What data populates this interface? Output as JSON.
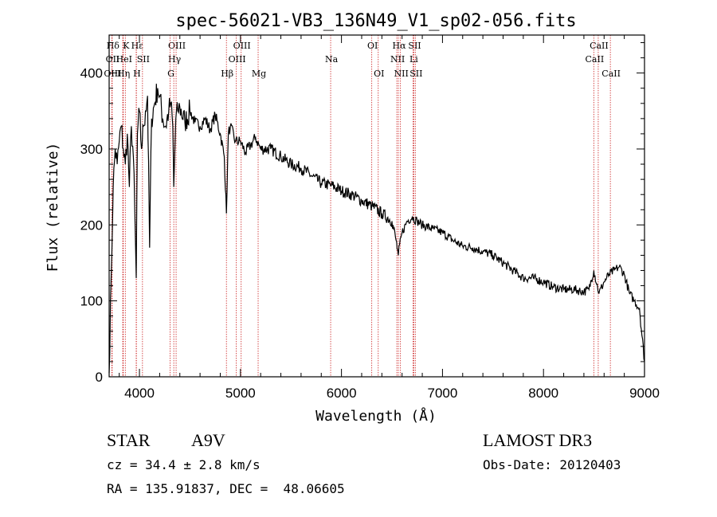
{
  "chart_data": {
    "type": "line",
    "title": "spec-56021-VB3_136N49_V1_sp02-056.fits",
    "xlabel": "Wavelength (Å)",
    "ylabel": "Flux (relative)",
    "xlim": [
      3700,
      9000
    ],
    "ylim": [
      0,
      450
    ],
    "x_ticks": [
      4000,
      5000,
      6000,
      7000,
      8000,
      9000
    ],
    "y_ticks": [
      0,
      100,
      200,
      300,
      400
    ],
    "grid": false,
    "series": [
      {
        "name": "spectrum",
        "x": [
          3700,
          3720,
          3740,
          3760,
          3780,
          3800,
          3820,
          3840,
          3860,
          3880,
          3900,
          3920,
          3940,
          3960,
          3968,
          3980,
          4000,
          4020,
          4040,
          4060,
          4080,
          4101,
          4120,
          4150,
          4180,
          4200,
          4230,
          4260,
          4290,
          4310,
          4330,
          4340,
          4360,
          4380,
          4400,
          4450,
          4500,
          4550,
          4600,
          4650,
          4700,
          4750,
          4800,
          4840,
          4861,
          4880,
          4900,
          4950,
          5000,
          5050,
          5100,
          5150,
          5200,
          5300,
          5400,
          5500,
          5600,
          5700,
          5800,
          5900,
          6000,
          6100,
          6200,
          6300,
          6400,
          6500,
          6540,
          6563,
          6600,
          6650,
          6700,
          6750,
          6800,
          6900,
          7000,
          7100,
          7200,
          7300,
          7400,
          7500,
          7600,
          7700,
          7800,
          7900,
          8000,
          8100,
          8200,
          8300,
          8400,
          8450,
          8498,
          8550,
          8600,
          8650,
          8700,
          8750,
          8800,
          8850,
          8900,
          8950,
          9000
        ],
        "y": [
          5,
          130,
          250,
          300,
          280,
          310,
          330,
          300,
          280,
          320,
          250,
          330,
          290,
          180,
          130,
          320,
          350,
          300,
          330,
          350,
          370,
          170,
          340,
          360,
          380,
          370,
          340,
          330,
          350,
          360,
          330,
          250,
          340,
          350,
          355,
          335,
          350,
          335,
          330,
          340,
          325,
          345,
          320,
          290,
          215,
          320,
          330,
          310,
          310,
          295,
          305,
          315,
          300,
          300,
          290,
          280,
          275,
          265,
          255,
          252,
          245,
          240,
          232,
          225,
          215,
          205,
          180,
          160,
          190,
          205,
          210,
          205,
          200,
          195,
          190,
          180,
          172,
          170,
          165,
          160,
          150,
          140,
          130,
          130,
          125,
          118,
          115,
          115,
          112,
          115,
          140,
          110,
          125,
          135,
          140,
          145,
          135,
          110,
          100,
          90,
          20
        ]
      }
    ],
    "line_markers": [
      {
        "label": "Hδ",
        "x": 3730,
        "row": 0
      },
      {
        "label": "OII",
        "x": 3727,
        "row": 1
      },
      {
        "label": "OIII",
        "x": 3727,
        "row": 2
      },
      {
        "label": "K",
        "x": 3860,
        "row": 0
      },
      {
        "label": "HeI",
        "x": 3840,
        "row": 1
      },
      {
        "label": "Hη",
        "x": 3835,
        "row": 2
      },
      {
        "label": "Hε",
        "x": 3970,
        "row": 0
      },
      {
        "label": "SII",
        "x": 4030,
        "row": 1
      },
      {
        "label": "H",
        "x": 3968,
        "row": 2
      },
      {
        "label": "OIII",
        "x": 4363,
        "row": 0
      },
      {
        "label": "Hγ",
        "x": 4340,
        "row": 1
      },
      {
        "label": "G",
        "x": 4304,
        "row": 2
      },
      {
        "label": "OIII",
        "x": 5007,
        "row": 0
      },
      {
        "label": "OIII",
        "x": 4959,
        "row": 1
      },
      {
        "label": "Hβ",
        "x": 4861,
        "row": 2
      },
      {
        "label": "Mg",
        "x": 5175,
        "row": 2
      },
      {
        "label": "Na",
        "x": 5893,
        "row": 1
      },
      {
        "label": "OI",
        "x": 6300,
        "row": 0
      },
      {
        "label": "OI",
        "x": 6364,
        "row": 2
      },
      {
        "label": "Hα",
        "x": 6563,
        "row": 0
      },
      {
        "label": "NII",
        "x": 6548,
        "row": 1
      },
      {
        "label": "NII",
        "x": 6584,
        "row": 2
      },
      {
        "label": "SII",
        "x": 6717,
        "row": 0
      },
      {
        "label": "Li",
        "x": 6708,
        "row": 1
      },
      {
        "label": "SII",
        "x": 6731,
        "row": 2
      },
      {
        "label": "CaII",
        "x": 8542,
        "row": 0
      },
      {
        "label": "CaII",
        "x": 8498,
        "row": 1
      },
      {
        "label": "CaII",
        "x": 8662,
        "row": 2
      }
    ]
  },
  "info": {
    "object_class": "STAR",
    "subclass": "A9V",
    "survey": "LAMOST DR3",
    "velocity": "cz = 34.4 ± 2.8 km/s",
    "obs_date": "Obs-Date: 20120403",
    "coords": "RA = 135.91837, DEC =  48.06605"
  },
  "colors": {
    "line": "#000000",
    "marker": "#cc2222",
    "axis": "#000000"
  }
}
